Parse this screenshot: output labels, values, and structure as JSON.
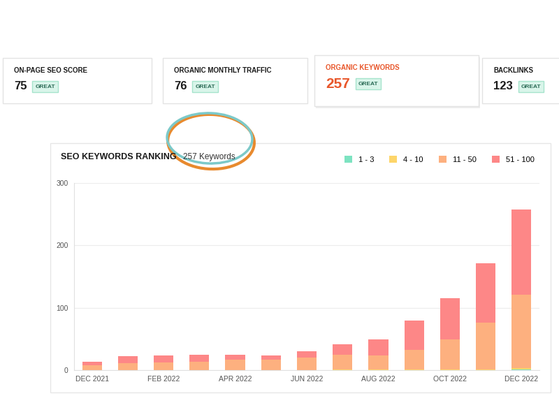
{
  "cards": [
    {
      "label": "ON-PAGE SEO SCORE",
      "value": 75,
      "rating": "GREAT",
      "color": "#1a1a1a"
    },
    {
      "label": "ORGANIC MONTHLY TRAFFIC",
      "value": 76,
      "rating": "GREAT",
      "color": "#1a1a1a"
    },
    {
      "label": "ORGANIC KEYWORDS",
      "value": 257,
      "rating": "GREAT",
      "color": "#e8562a"
    },
    {
      "label": "BACKLINKS",
      "value": 123,
      "rating": "GREAT",
      "color": "#1a1a1a"
    }
  ],
  "chart_data": {
    "type": "bar",
    "title": "SEO KEYWORDS RANKING",
    "subtitle": "257 Keywords",
    "stacked": true,
    "grid": true,
    "legend": "upper right",
    "categories": [
      "DEC 2021",
      null,
      "FEB 2022",
      null,
      "APR 2022",
      null,
      "JUN 2022",
      null,
      "AUG 2022",
      null,
      "OCT 2022",
      null,
      "DEC 2022"
    ],
    "series": [
      {
        "name": "1 - 3",
        "color": "#7de3c1",
        "values": [
          0,
          0,
          0,
          0,
          0,
          0,
          0,
          0,
          0,
          0,
          0,
          0,
          1
        ]
      },
      {
        "name": "4 - 10",
        "color": "#fdd56a",
        "values": [
          0,
          0,
          0,
          0,
          0,
          0,
          0,
          1,
          1,
          1,
          1,
          1,
          2
        ]
      },
      {
        "name": "11 - 50",
        "color": "#fdb07f",
        "values": [
          8,
          11,
          12,
          13,
          17,
          17,
          20,
          24,
          22,
          32,
          48,
          75,
          118
        ]
      },
      {
        "name": "51 - 100",
        "color": "#fd8787",
        "values": [
          5,
          11,
          11,
          12,
          8,
          6,
          10,
          16,
          26,
          46,
          66,
          95,
          136
        ]
      }
    ],
    "ylim": [
      0,
      300
    ],
    "yticks": [
      0,
      100,
      200,
      300
    ]
  }
}
